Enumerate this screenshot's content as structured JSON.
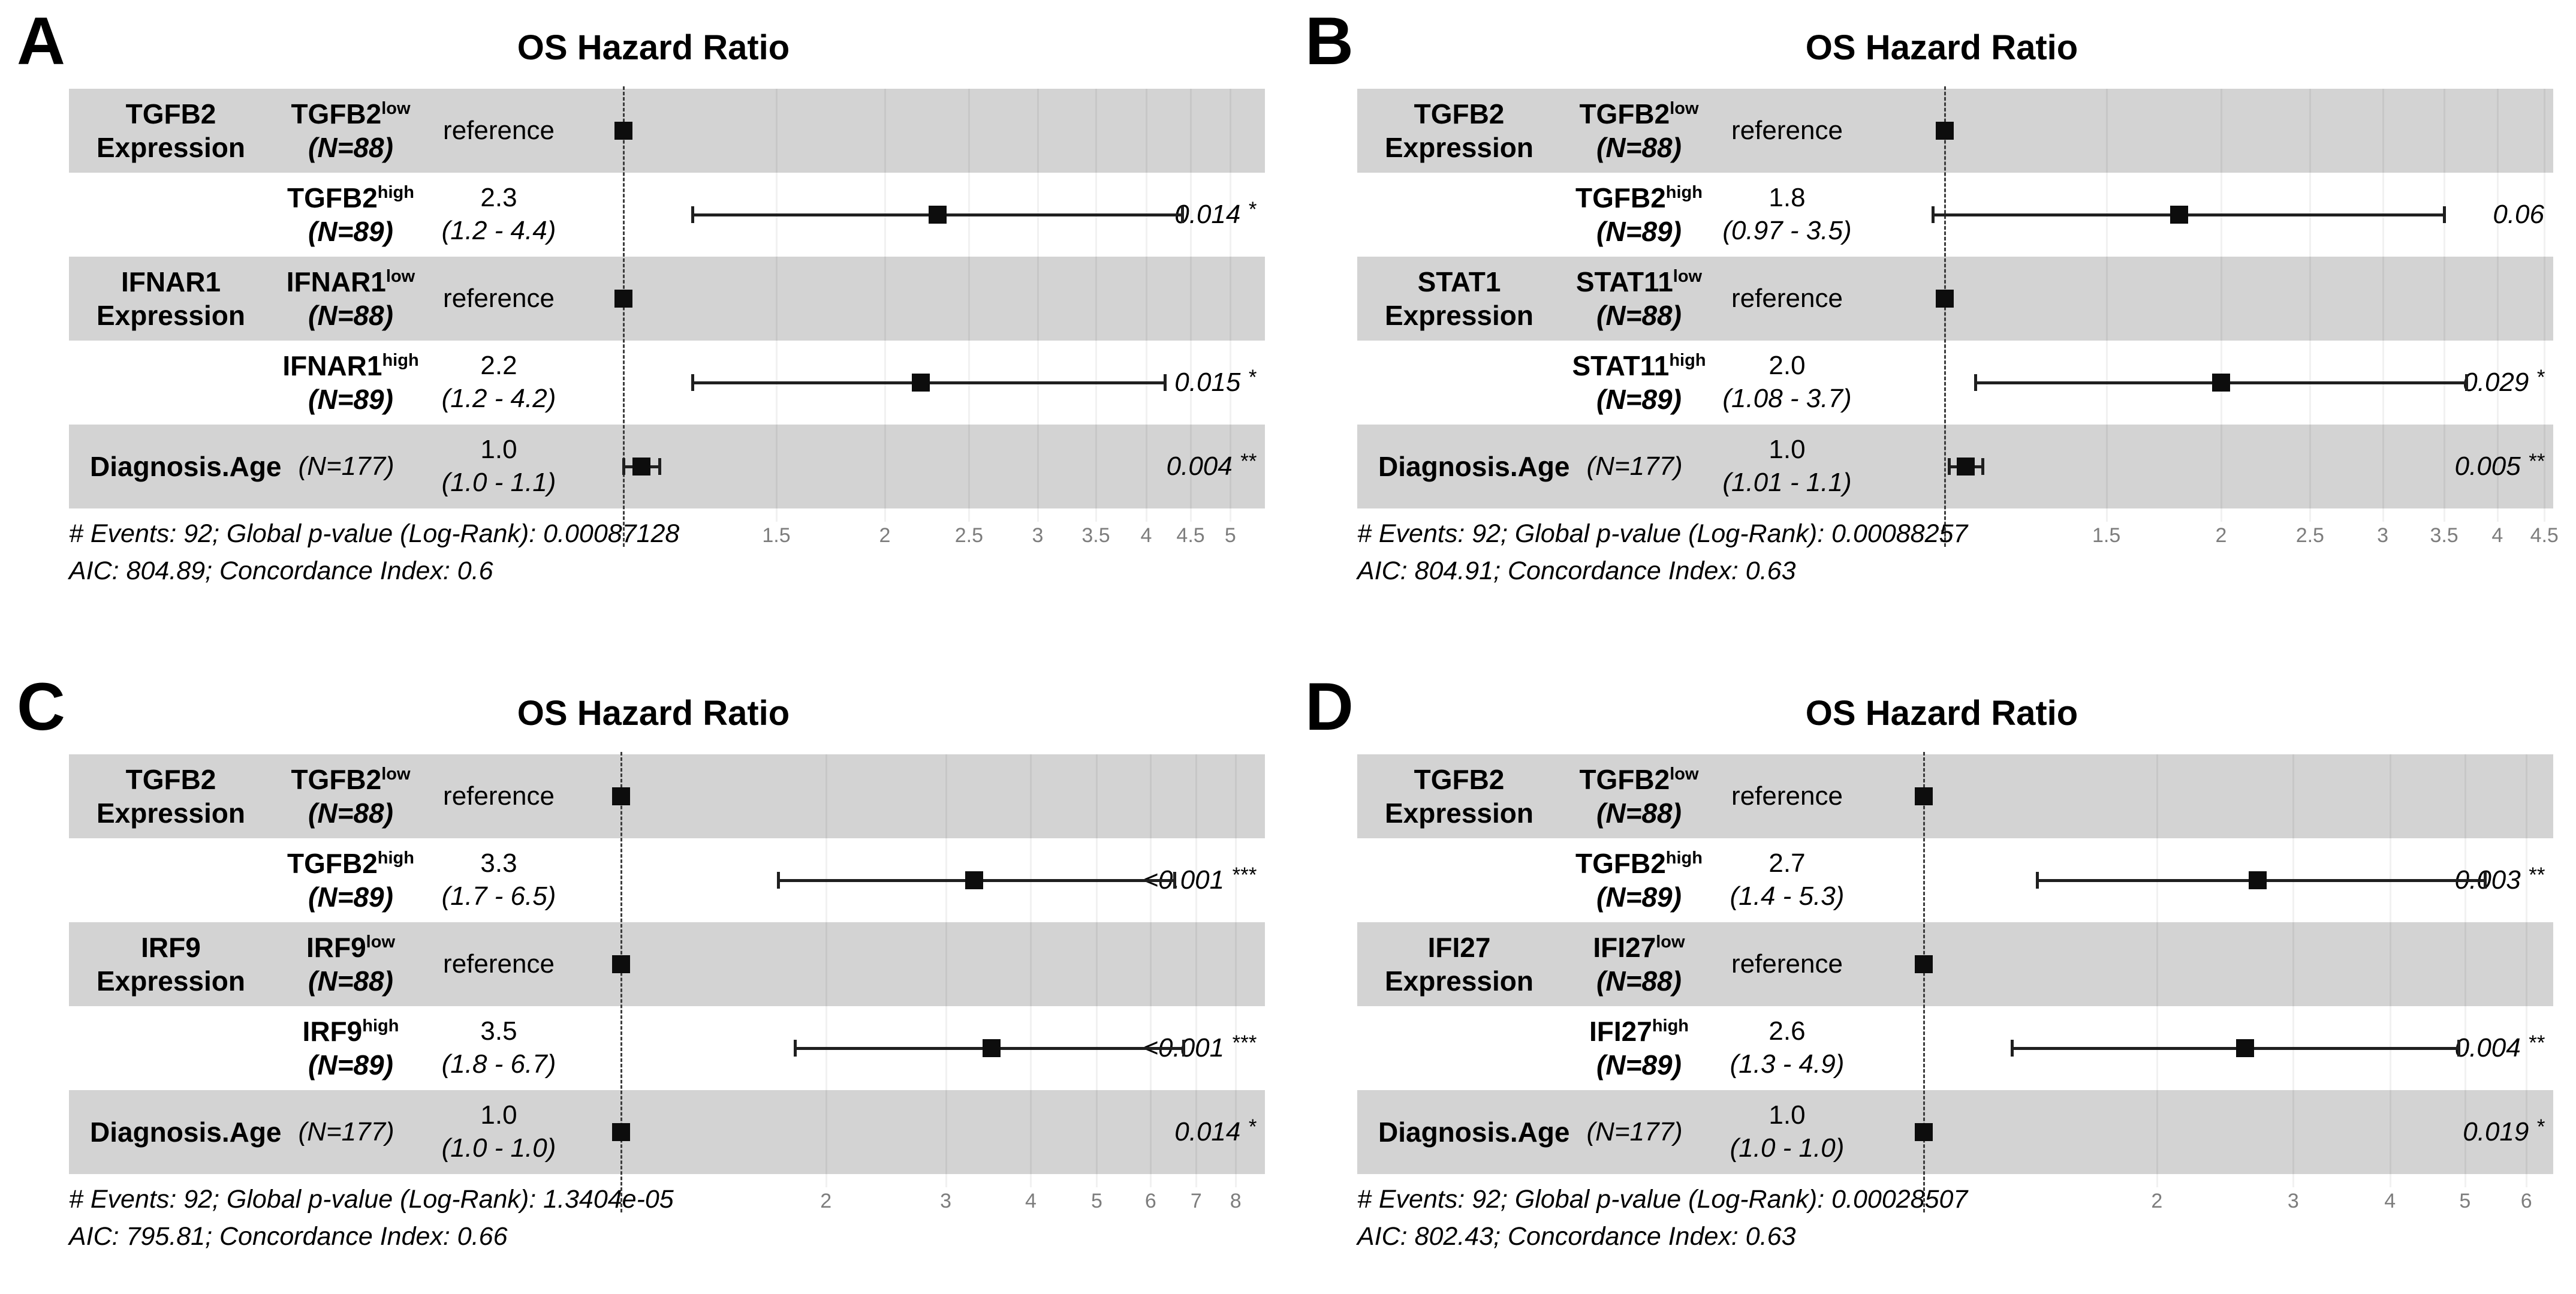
{
  "figure_title": "OS Hazard Ratio",
  "colors": {
    "band_shaded": "#d3d3d3",
    "marker": "#0d0d0d",
    "tick_label": "#7d7d7d",
    "ref_line": "#3c3c3c",
    "background": "#ffffff"
  },
  "panels": [
    {
      "letter": "A",
      "title": "OS Hazard Ratio",
      "rows": [
        {
          "group": [
            "TGFB2",
            "Expression"
          ],
          "level": "TGFB2",
          "level_sup": "low",
          "level_n": "(N=88)",
          "estimate": "reference",
          "ci": "",
          "p": "",
          "stars": "",
          "shaded": true,
          "ref": true,
          "hr": 1.0,
          "lo": null,
          "hi": null
        },
        {
          "group": [],
          "level": "TGFB2",
          "level_sup": "high",
          "level_n": "(N=89)",
          "estimate": "2.3",
          "ci": "(1.2 - 4.4)",
          "p": "0.014",
          "stars": "*",
          "shaded": false,
          "ref": false,
          "hr": 2.3,
          "lo": 1.2,
          "hi": 4.4
        },
        {
          "group": [
            "IFNAR1",
            "Expression"
          ],
          "level": "IFNAR1",
          "level_sup": "low",
          "level_n": "(N=88)",
          "estimate": "reference",
          "ci": "",
          "p": "",
          "stars": "",
          "shaded": true,
          "ref": true,
          "hr": 1.0,
          "lo": null,
          "hi": null
        },
        {
          "group": [],
          "level": "IFNAR1",
          "level_sup": "high",
          "level_n": "(N=89)",
          "estimate": "2.2",
          "ci": "(1.2 - 4.2)",
          "p": "0.015",
          "stars": "*",
          "shaded": false,
          "ref": false,
          "hr": 2.2,
          "lo": 1.2,
          "hi": 4.2
        },
        {
          "diag": true,
          "diag_label": "Diagnosis.Age",
          "diag_n": "(N=177)",
          "estimate": "1.0",
          "ci": "(1.0 - 1.1)",
          "p": "0.004",
          "stars": "**",
          "shaded": true,
          "ref": false,
          "hr": 1.0,
          "lo": 1.0,
          "hi": 1.1
        }
      ],
      "ticks": [
        "1.5",
        "2",
        "2.5",
        "3",
        "3.5",
        "4",
        "4.5",
        "5"
      ],
      "footer_line1": "# Events: 92; Global p-value (Log-Rank): 0.00087128",
      "footer_line2": "AIC: 804.89; Concordance Index: 0.6"
    },
    {
      "letter": "B",
      "title": "OS Hazard Ratio",
      "rows": [
        {
          "group": [
            "TGFB2",
            "Expression"
          ],
          "level": "TGFB2",
          "level_sup": "low",
          "level_n": "(N=88)",
          "estimate": "reference",
          "ci": "",
          "p": "",
          "stars": "",
          "shaded": true,
          "ref": true,
          "hr": 1.0,
          "lo": null,
          "hi": null
        },
        {
          "group": [],
          "level": "TGFB2",
          "level_sup": "high",
          "level_n": "(N=89)",
          "estimate": "1.8",
          "ci": "(0.97 - 3.5)",
          "p": "0.06",
          "stars": "",
          "shaded": false,
          "ref": false,
          "hr": 1.8,
          "lo": 0.97,
          "hi": 3.5
        },
        {
          "group": [
            "STAT1",
            "Expression"
          ],
          "level": "STAT11",
          "level_sup": "low",
          "level_n": "(N=88)",
          "estimate": "reference",
          "ci": "",
          "p": "",
          "stars": "",
          "shaded": true,
          "ref": true,
          "hr": 1.0,
          "lo": null,
          "hi": null
        },
        {
          "group": [],
          "level": "STAT11",
          "level_sup": "high",
          "level_n": "(N=89)",
          "estimate": "2.0",
          "ci": "(1.08 - 3.7)",
          "p": "0.029",
          "stars": "*",
          "shaded": false,
          "ref": false,
          "hr": 2.0,
          "lo": 1.08,
          "hi": 3.7
        },
        {
          "diag": true,
          "diag_label": "Diagnosis.Age",
          "diag_n": "(N=177)",
          "estimate": "1.0",
          "ci": "(1.01 - 1.1)",
          "p": "0.005",
          "stars": "**",
          "shaded": true,
          "ref": false,
          "hr": 1.0,
          "lo": 1.01,
          "hi": 1.1
        }
      ],
      "ticks": [
        "1",
        "1.5",
        "2",
        "2.5",
        "3",
        "3.5",
        "4",
        "4.5"
      ],
      "footer_line1": "# Events: 92; Global p-value (Log-Rank): 0.00088257",
      "footer_line2": "AIC: 804.91; Concordance Index: 0.63"
    },
    {
      "letter": "C",
      "title": "OS Hazard Ratio",
      "rows": [
        {
          "group": [
            "TGFB2",
            "Expression"
          ],
          "level": "TGFB2",
          "level_sup": "low",
          "level_n": "(N=88)",
          "estimate": "reference",
          "ci": "",
          "p": "",
          "stars": "",
          "shaded": true,
          "ref": true,
          "hr": 1.0,
          "lo": null,
          "hi": null
        },
        {
          "group": [],
          "level": "TGFB2",
          "level_sup": "high",
          "level_n": "(N=89)",
          "estimate": "3.3",
          "ci": "(1.7 - 6.5)",
          "p": "<0.001",
          "stars": "***",
          "shaded": false,
          "ref": false,
          "hr": 3.3,
          "lo": 1.7,
          "hi": 6.5
        },
        {
          "group": [
            "IRF9",
            "Expression"
          ],
          "level": "IRF9",
          "level_sup": "low",
          "level_n": "(N=88)",
          "estimate": "reference",
          "ci": "",
          "p": "",
          "stars": "",
          "shaded": true,
          "ref": true,
          "hr": 1.0,
          "lo": null,
          "hi": null
        },
        {
          "group": [],
          "level": "IRF9",
          "level_sup": "high",
          "level_n": "(N=89)",
          "estimate": "3.5",
          "ci": "(1.8 - 6.7)",
          "p": "<0.001",
          "stars": "***",
          "shaded": false,
          "ref": false,
          "hr": 3.5,
          "lo": 1.8,
          "hi": 6.7
        },
        {
          "diag": true,
          "diag_label": "Diagnosis.Age",
          "diag_n": "(N=177)",
          "estimate": "1.0",
          "ci": "(1.0 - 1.0)",
          "p": "0.014",
          "stars": "*",
          "shaded": true,
          "ref": false,
          "hr": 1.0,
          "lo": 1.0,
          "hi": 1.0
        }
      ],
      "ticks": [
        "2",
        "3",
        "4",
        "5",
        "6",
        "7",
        "8"
      ],
      "footer_line1": "# Events: 92; Global p-value (Log-Rank): 1.3404e-05",
      "footer_line2": "AIC: 795.81; Concordance Index: 0.66"
    },
    {
      "letter": "D",
      "title": "OS Hazard Ratio",
      "rows": [
        {
          "group": [
            "TGFB2",
            "Expression"
          ],
          "level": "TGFB2",
          "level_sup": "low",
          "level_n": "(N=88)",
          "estimate": "reference",
          "ci": "",
          "p": "",
          "stars": "",
          "shaded": true,
          "ref": true,
          "hr": 1.0,
          "lo": null,
          "hi": null
        },
        {
          "group": [],
          "level": "TGFB2",
          "level_sup": "high",
          "level_n": "(N=89)",
          "estimate": "2.7",
          "ci": "(1.4 - 5.3)",
          "p": "0.003",
          "stars": "**",
          "shaded": false,
          "ref": false,
          "hr": 2.7,
          "lo": 1.4,
          "hi": 5.3
        },
        {
          "group": [
            "IFI27",
            "Expression"
          ],
          "level": "IFI27",
          "level_sup": "low",
          "level_n": "(N=88)",
          "estimate": "reference",
          "ci": "",
          "p": "",
          "stars": "",
          "shaded": true,
          "ref": true,
          "hr": 1.0,
          "lo": null,
          "hi": null
        },
        {
          "group": [],
          "level": "IFI27",
          "level_sup": "high",
          "level_n": "(N=89)",
          "estimate": "2.6",
          "ci": "(1.3 - 4.9)",
          "p": "0.004",
          "stars": "**",
          "shaded": false,
          "ref": false,
          "hr": 2.6,
          "lo": 1.3,
          "hi": 4.9
        },
        {
          "diag": true,
          "diag_label": "Diagnosis.Age",
          "diag_n": "(N=177)",
          "estimate": "1.0",
          "ci": "(1.0 - 1.0)",
          "p": "0.019",
          "stars": "*",
          "shaded": true,
          "ref": false,
          "hr": 1.0,
          "lo": 1.0,
          "hi": 1.0
        }
      ],
      "ticks": [
        "2",
        "3",
        "4",
        "5",
        "6"
      ],
      "footer_line1": "# Events: 92; Global p-value (Log-Rank): 0.00028507",
      "footer_line2": "AIC: 802.43; Concordance Index: 0.63"
    }
  ],
  "chart_data": [
    {
      "type": "scatter",
      "subtype": "forest-plot",
      "panel": "A",
      "title": "OS Hazard Ratio",
      "xscale": "log",
      "xticks": [
        1.5,
        2,
        2.5,
        3,
        3.5,
        4,
        4.5,
        5
      ],
      "reference_line": 1.0,
      "rows": [
        {
          "label": "TGFB2low (N=88)",
          "group": "TGFB2 Expression",
          "hr": 1.0,
          "reference": true
        },
        {
          "label": "TGFB2high (N=89)",
          "hr": 2.3,
          "lo": 1.2,
          "hi": 4.4,
          "p": "0.014 *"
        },
        {
          "label": "IFNAR1low (N=88)",
          "group": "IFNAR1 Expression",
          "hr": 1.0,
          "reference": true
        },
        {
          "label": "IFNAR1high (N=89)",
          "hr": 2.2,
          "lo": 1.2,
          "hi": 4.2,
          "p": "0.015 *"
        },
        {
          "label": "Diagnosis.Age (N=177)",
          "hr": 1.0,
          "lo": 1.0,
          "hi": 1.1,
          "p": "0.004 **"
        }
      ],
      "events": 92,
      "global_p_logrank": "0.00087128",
      "aic": "804.89",
      "concordance_index": "0.6"
    },
    {
      "type": "scatter",
      "subtype": "forest-plot",
      "panel": "B",
      "title": "OS Hazard Ratio",
      "xscale": "log",
      "xticks": [
        1,
        1.5,
        2,
        2.5,
        3,
        3.5,
        4,
        4.5
      ],
      "reference_line": 1.0,
      "rows": [
        {
          "label": "TGFB2low (N=88)",
          "group": "TGFB2 Expression",
          "hr": 1.0,
          "reference": true
        },
        {
          "label": "TGFB2high (N=89)",
          "hr": 1.8,
          "lo": 0.97,
          "hi": 3.5,
          "p": "0.06"
        },
        {
          "label": "STAT11low (N=88)",
          "group": "STAT1 Expression",
          "hr": 1.0,
          "reference": true
        },
        {
          "label": "STAT11high (N=89)",
          "hr": 2.0,
          "lo": 1.08,
          "hi": 3.7,
          "p": "0.029 *"
        },
        {
          "label": "Diagnosis.Age (N=177)",
          "hr": 1.0,
          "lo": 1.01,
          "hi": 1.1,
          "p": "0.005 **"
        }
      ],
      "events": 92,
      "global_p_logrank": "0.00088257",
      "aic": "804.91",
      "concordance_index": "0.63"
    },
    {
      "type": "scatter",
      "subtype": "forest-plot",
      "panel": "C",
      "title": "OS Hazard Ratio",
      "xscale": "log",
      "xticks": [
        2,
        3,
        4,
        5,
        6,
        7,
        8
      ],
      "reference_line": 1.0,
      "rows": [
        {
          "label": "TGFB2low (N=88)",
          "group": "TGFB2 Expression",
          "hr": 1.0,
          "reference": true
        },
        {
          "label": "TGFB2high (N=89)",
          "hr": 3.3,
          "lo": 1.7,
          "hi": 6.5,
          "p": "<0.001 ***"
        },
        {
          "label": "IRF9low (N=88)",
          "group": "IRF9 Expression",
          "hr": 1.0,
          "reference": true
        },
        {
          "label": "IRF9high (N=89)",
          "hr": 3.5,
          "lo": 1.8,
          "hi": 6.7,
          "p": "<0.001 ***"
        },
        {
          "label": "Diagnosis.Age (N=177)",
          "hr": 1.0,
          "lo": 1.0,
          "hi": 1.0,
          "p": "0.014 *"
        }
      ],
      "events": 92,
      "global_p_logrank": "1.3404e-05",
      "aic": "795.81",
      "concordance_index": "0.66"
    },
    {
      "type": "scatter",
      "subtype": "forest-plot",
      "panel": "D",
      "title": "OS Hazard Ratio",
      "xscale": "log",
      "xticks": [
        2,
        3,
        4,
        5,
        6
      ],
      "reference_line": 1.0,
      "rows": [
        {
          "label": "TGFB2low (N=88)",
          "group": "TGFB2 Expression",
          "hr": 1.0,
          "reference": true
        },
        {
          "label": "TGFB2high (N=89)",
          "hr": 2.7,
          "lo": 1.4,
          "hi": 5.3,
          "p": "0.003 **"
        },
        {
          "label": "IFI27low (N=88)",
          "group": "IFI27 Expression",
          "hr": 1.0,
          "reference": true
        },
        {
          "label": "IFI27high (N=89)",
          "hr": 2.6,
          "lo": 1.3,
          "hi": 4.9,
          "p": "0.004 **"
        },
        {
          "label": "Diagnosis.Age (N=177)",
          "hr": 1.0,
          "lo": 1.0,
          "hi": 1.0,
          "p": "0.019 *"
        }
      ],
      "events": 92,
      "global_p_logrank": "0.00028507",
      "aic": "802.43",
      "concordance_index": "0.63"
    }
  ]
}
